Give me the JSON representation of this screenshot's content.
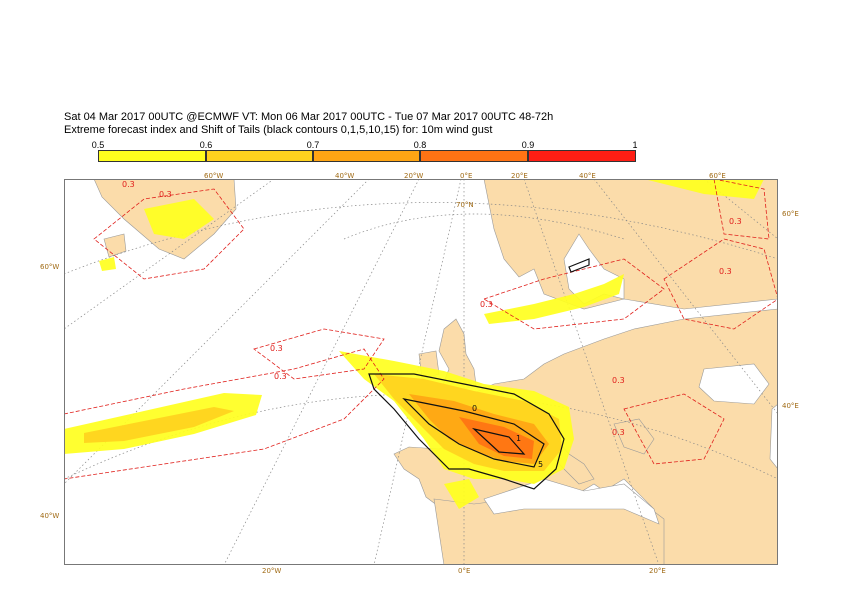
{
  "header": {
    "line1": "Sat 04 Mar 2017 00UTC @ECMWF VT: Mon 06 Mar 2017 00UTC - Tue 07 Mar 2017 00UTC  48-72h",
    "line2": "Extreme forecast index and Shift of Tails (black contours 0,1,5,10,15) for: 10m wind gust"
  },
  "legend": {
    "labels": [
      "0.5",
      "0.6",
      "0.7",
      "0.8",
      "0.9",
      "1"
    ],
    "colors": [
      "#ffff1e",
      "#ffd21e",
      "#ffa514",
      "#ff7314",
      "#ff1e14"
    ]
  },
  "map": {
    "land_color": "#fbdcaa",
    "sea_color": "#ffffff",
    "lon_labels_top": [
      "60°W",
      "40°W",
      "20°W",
      "0°E",
      "20°E",
      "40°E",
      "60°E"
    ],
    "lon_labels_bottom": [
      "20°W",
      "0°E",
      "20°E"
    ],
    "lat_labels_left": [
      "60°W",
      "40°W"
    ],
    "lat_labels_right": [
      "60°E",
      "40°E"
    ],
    "lat_label_inner": "70°N",
    "contour_labels": [
      "0.3",
      "0.3",
      "0.3",
      "0.3",
      "0.3",
      "0.3",
      "0.3",
      "0.3",
      "0.3"
    ],
    "sot_labels": [
      "0",
      "1",
      "5"
    ]
  }
}
